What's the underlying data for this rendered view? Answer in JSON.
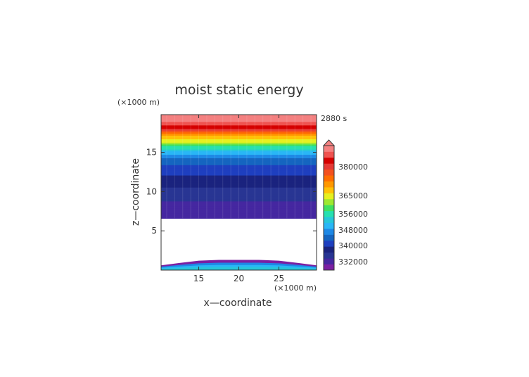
{
  "chart_data": {
    "type": "heatmap",
    "title": "moist static energy",
    "time_label": "2880 s",
    "xlabel": "x—coordinate",
    "ylabel": "z—coordinate",
    "x_unit": "(×1000 m)",
    "y_unit": "(×1000 m)",
    "xlim": [
      10.3,
      29.7
    ],
    "ylim": [
      0.0,
      19.8
    ],
    "x_ticks": [
      15,
      20,
      25
    ],
    "y_ticks": [
      5,
      10,
      15
    ],
    "blank_region_z": [
      1.1,
      6.6
    ],
    "surface_blob": {
      "x": [
        10.3,
        12.5,
        15,
        17.5,
        20,
        22.5,
        25,
        27.5,
        29.7
      ],
      "z_top": [
        0.6,
        0.9,
        1.2,
        1.3,
        1.3,
        1.3,
        1.2,
        0.9,
        0.6
      ]
    },
    "upper_layer": {
      "z_bottom": 6.6,
      "z_top": 19.8,
      "levels": [
        {
          "z": 6.6,
          "value": 333000
        },
        {
          "z": 7.8,
          "value": 331500
        },
        {
          "z": 9.0,
          "value": 334000
        },
        {
          "z": 10.5,
          "value": 336500
        },
        {
          "z": 12.5,
          "value": 340000
        },
        {
          "z": 14.0,
          "value": 344000
        },
        {
          "z": 15.0,
          "value": 350000
        },
        {
          "z": 15.7,
          "value": 356000
        },
        {
          "z": 16.3,
          "value": 362000
        },
        {
          "z": 17.2,
          "value": 368000
        },
        {
          "z": 18.0,
          "value": 378000
        },
        {
          "z": 18.7,
          "value": 385000
        },
        {
          "z": 19.8,
          "value": 386000
        }
      ]
    },
    "colorbar": {
      "tick_labels": [
        "332000",
        "340000",
        "348000",
        "356000",
        "365000",
        "380000"
      ],
      "colors": [
        "#7B1FA2",
        "#4527A0",
        "#283593",
        "#1A237E",
        "#1E3FBF",
        "#1565C0",
        "#1E88E5",
        "#29B6F6",
        "#26C6DA",
        "#26E0B0",
        "#40E060",
        "#9EE830",
        "#E6F020",
        "#FFC107",
        "#FF9800",
        "#FF6D00",
        "#F4511E",
        "#E53935",
        "#D50000",
        "#EF5350",
        "#F48080"
      ]
    }
  }
}
